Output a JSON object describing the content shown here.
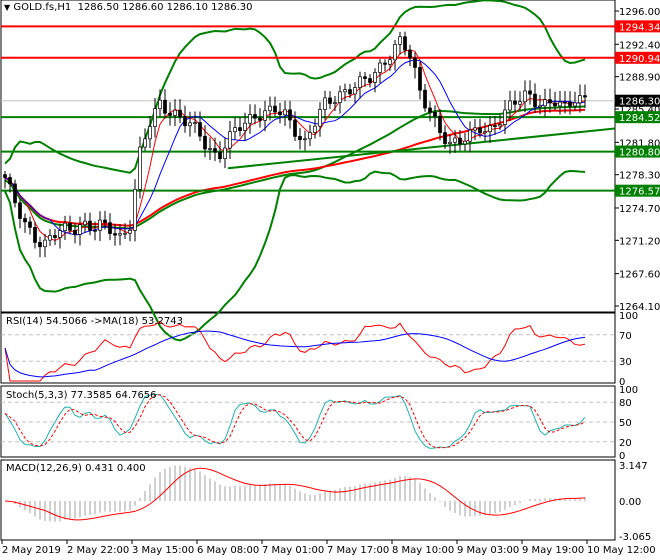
{
  "header": {
    "symbol": "GOLD.fs,H1",
    "ohlc": "1286.50 1286.60 1286.10 1286.30"
  },
  "main_axis": {
    "ticks": [
      "1296.00",
      "1292.40",
      "1288.90",
      "1285.40",
      "1281.80",
      "1278.30",
      "1274.70",
      "1271.20",
      "1267.60",
      "1264.10"
    ],
    "range": [
      1264.1,
      1296.0
    ]
  },
  "levels": [
    {
      "price": 1294.34,
      "label": "1294.34",
      "color": "#ff0000"
    },
    {
      "price": 1290.94,
      "label": "1290.94",
      "color": "#ff0000"
    },
    {
      "price": 1284.52,
      "label": "1284.52",
      "color": "#008000"
    },
    {
      "price": 1280.8,
      "label": "1280.80",
      "color": "#008000"
    },
    {
      "price": 1276.57,
      "label": "1276.57",
      "color": "#008000"
    }
  ],
  "current_price": {
    "price": 1286.3,
    "label": "1286.30"
  },
  "rsi": {
    "title": "RSI(14) 54.5066  ->MA(18) 53.2743",
    "ticks": [
      "100",
      "70",
      "30",
      "0"
    ]
  },
  "stoch": {
    "title": "Stoch(5,3,3) 77.3585 64.7656",
    "ticks": [
      "100",
      "80",
      "50",
      "20",
      "0"
    ]
  },
  "macd": {
    "title": "MACD(12,26,9) 0.431 0.400",
    "ticks": [
      "3.147",
      "0.00",
      "-3.065"
    ]
  },
  "time_axis": [
    "2 May 2019",
    "2 May 22:00",
    "3 May 15:00",
    "6 May 08:00",
    "7 May 01:00",
    "7 May 17:00",
    "8 May 10:00",
    "9 May 03:00",
    "9 May 19:00",
    "10 May 12:00"
  ],
  "chart_data": {
    "type": "candlestick",
    "closes": [
      1278,
      1275.5,
      1273,
      1271.5,
      1270.5,
      1272,
      1272.5,
      1272.3,
      1272.8,
      1272.6,
      1273,
      1272.4,
      1271.2,
      1273,
      1281,
      1284,
      1286,
      1285,
      1284.5,
      1284,
      1283,
      1281,
      1280,
      1282,
      1283.5,
      1284,
      1284.6,
      1285,
      1285.5,
      1284.8,
      1283,
      1281.5,
      1284,
      1286,
      1286.5,
      1287,
      1287.8,
      1288.5,
      1289,
      1290,
      1291.5,
      1293,
      1291,
      1287,
      1285,
      1283,
      1281.5,
      1282,
      1282.5,
      1283.5,
      1282.8,
      1284,
      1285.5,
      1286.5,
      1287,
      1286,
      1285.8,
      1286.4,
      1285.5,
      1286.6,
      1286.3
    ]
  }
}
